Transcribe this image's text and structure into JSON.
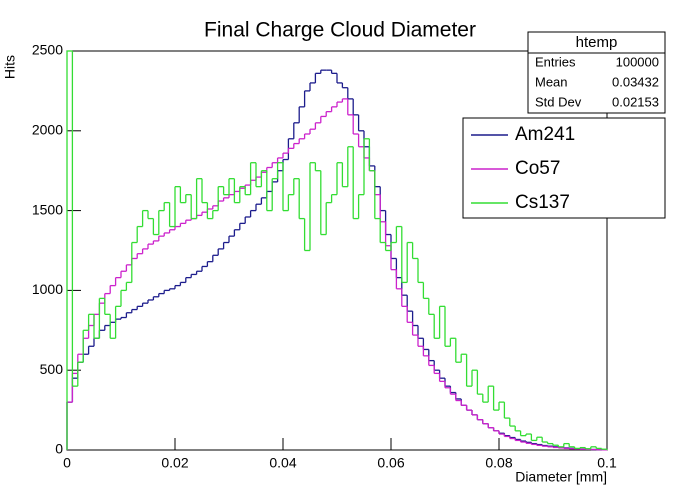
{
  "chart_data": {
    "type": "histogram",
    "title": "Final Charge Cloud Diameter",
    "x_label": "Diameter [mm]",
    "y_label": "Hits",
    "bins": [
      0,
      0.001,
      0.002,
      0.003,
      0.004,
      0.005,
      0.006,
      0.007,
      0.008,
      0.009,
      0.01,
      0.011,
      0.012,
      0.013,
      0.014,
      0.015,
      0.016,
      0.017,
      0.018,
      0.019,
      0.02,
      0.021,
      0.022,
      0.023,
      0.024,
      0.025,
      0.026,
      0.027,
      0.028,
      0.029,
      0.03,
      0.031,
      0.032,
      0.033,
      0.034,
      0.035,
      0.036,
      0.037,
      0.038,
      0.039,
      0.04,
      0.041,
      0.042,
      0.043,
      0.044,
      0.045,
      0.046,
      0.047,
      0.048,
      0.049,
      0.05,
      0.051,
      0.052,
      0.053,
      0.054,
      0.055,
      0.056,
      0.057,
      0.058,
      0.059,
      0.06,
      0.061,
      0.062,
      0.063,
      0.064,
      0.065,
      0.066,
      0.067,
      0.068,
      0.069,
      0.07,
      0.071,
      0.072,
      0.073,
      0.074,
      0.075,
      0.076,
      0.077,
      0.078,
      0.079,
      0.08,
      0.081,
      0.082,
      0.083,
      0.084,
      0.085,
      0.086,
      0.087,
      0.088,
      0.089,
      0.09,
      0.091,
      0.092,
      0.093,
      0.094,
      0.095,
      0.096,
      0.097,
      0.098,
      0.099,
      0.1
    ],
    "series": [
      {
        "name": "Am241",
        "color": "#1c1c8c",
        "values": [
          300,
          450,
          550,
          600,
          650,
          700,
          750,
          780,
          800,
          820,
          830,
          860,
          880,
          900,
          920,
          940,
          960,
          980,
          1000,
          1010,
          1030,
          1050,
          1080,
          1100,
          1120,
          1150,
          1180,
          1220,
          1260,
          1300,
          1340,
          1380,
          1420,
          1460,
          1500,
          1540,
          1580,
          1620,
          1680,
          1750,
          1820,
          1950,
          2050,
          2150,
          2250,
          2300,
          2360,
          2380,
          2380,
          2360,
          2300,
          2270,
          2200,
          2100,
          2000,
          1900,
          1780,
          1650,
          1500,
          1350,
          1200,
          1080,
          970,
          870,
          780,
          700,
          630,
          560,
          500,
          450,
          400,
          360,
          320,
          280,
          250,
          220,
          190,
          165,
          140,
          120,
          105,
          90,
          78,
          66,
          56,
          48,
          40,
          34,
          28,
          24,
          20,
          16,
          13,
          10,
          8,
          6,
          4,
          3,
          2,
          1
        ]
      },
      {
        "name": "Co57",
        "color": "#cc22cc",
        "values": [
          300,
          480,
          600,
          700,
          780,
          850,
          920,
          980,
          1030,
          1080,
          1120,
          1160,
          1200,
          1230,
          1260,
          1290,
          1310,
          1340,
          1360,
          1380,
          1400,
          1420,
          1440,
          1450,
          1470,
          1490,
          1510,
          1530,
          1560,
          1580,
          1600,
          1620,
          1640,
          1660,
          1690,
          1710,
          1740,
          1770,
          1800,
          1830,
          1860,
          1890,
          1920,
          1950,
          1980,
          2010,
          2050,
          2090,
          2120,
          2150,
          2180,
          2200,
          2100,
          1980,
          1900,
          1830,
          1750,
          1600,
          1430,
          1280,
          1130,
          1010,
          900,
          800,
          720,
          650,
          590,
          530,
          480,
          430,
          390,
          350,
          310,
          280,
          250,
          220,
          190,
          165,
          140,
          120,
          100,
          85,
          72,
          60,
          50,
          42,
          35,
          29,
          24,
          20,
          16,
          13,
          10,
          8,
          6,
          5,
          4,
          3,
          2,
          1
        ]
      },
      {
        "name": "Cs137",
        "color": "#33dd33",
        "values": [
          2500,
          400,
          550,
          750,
          850,
          700,
          950,
          850,
          700,
          900,
          1000,
          1050,
          1300,
          1400,
          1500,
          1450,
          1350,
          1500,
          1550,
          1400,
          1650,
          1550,
          1600,
          1450,
          1700,
          1550,
          1450,
          1500,
          1650,
          1600,
          1700,
          1550,
          1650,
          1600,
          1800,
          1650,
          1750,
          1500,
          1700,
          1800,
          1500,
          1600,
          1700,
          1450,
          1250,
          1800,
          1750,
          1350,
          1550,
          1600,
          1800,
          1650,
          1900,
          1450,
          1600,
          1950,
          1750,
          1450,
          1300,
          1250,
          1300,
          1400,
          1050,
          1300,
          1200,
          1050,
          950,
          850,
          700,
          900,
          650,
          700,
          550,
          600,
          400,
          500,
          350,
          300,
          400,
          250,
          300,
          200,
          150,
          120,
          90,
          100,
          60,
          80,
          50,
          40,
          30,
          20,
          40,
          20,
          10,
          15,
          8,
          20,
          10,
          5
        ]
      }
    ],
    "xlim": [
      0,
      0.1
    ],
    "xticks": [
      0,
      0.02,
      0.04,
      0.06,
      0.08,
      0.1
    ],
    "ylim": [
      0,
      2500
    ],
    "yticks": [
      0,
      500,
      1000,
      1500,
      2000,
      2500
    ],
    "stats": {
      "title": "htemp",
      "rows": [
        {
          "label": "Entries",
          "value": 100000
        },
        {
          "label": "Mean",
          "value": 0.03432
        },
        {
          "label": "Std Dev",
          "value": 0.02153
        }
      ]
    }
  }
}
